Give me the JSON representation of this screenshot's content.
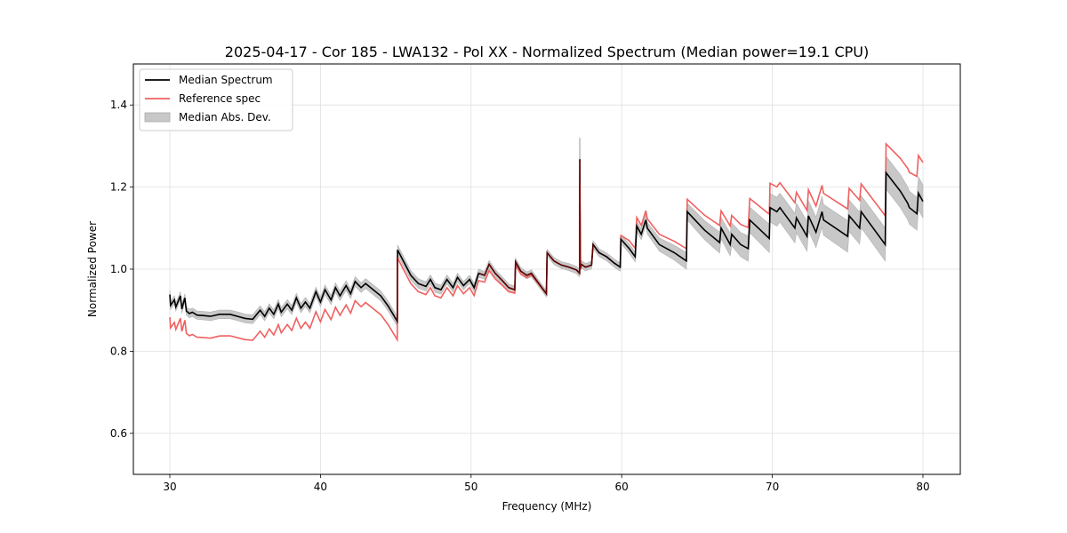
{
  "chart_data": {
    "type": "line",
    "title": "2025-04-17 - Cor 185 - LWA132 - Pol XX - Normalized Spectrum (Median power=19.1 CPU)",
    "xlabel": "Frequency (MHz)",
    "ylabel": "Normalized Power",
    "xlim": [
      27.58,
      82.48
    ],
    "ylim": [
      0.5,
      1.5
    ],
    "xticks": [
      30,
      40,
      50,
      60,
      70,
      80
    ],
    "xtick_labels": [
      "30",
      "40",
      "50",
      "60",
      "70",
      "80"
    ],
    "yticks": [
      0.6,
      0.8,
      1.0,
      1.2,
      1.4
    ],
    "ytick_labels": [
      "0.6",
      "0.8",
      "1.0",
      "1.2",
      "1.4"
    ],
    "grid": true,
    "legend": {
      "placement": "top-left",
      "entries": [
        {
          "label": "Median Spectrum",
          "kind": "line",
          "color": "#000000"
        },
        {
          "label": "Reference spec",
          "kind": "line",
          "color": "#f06060"
        },
        {
          "label": "Median Abs. Dev.",
          "kind": "patch",
          "color": "#c8c8c8"
        }
      ]
    },
    "series": [
      {
        "name": "Median Spectrum",
        "color": "#000000",
        "x": [
          30.0,
          30.05,
          30.3,
          30.4,
          30.7,
          30.8,
          31.0,
          31.1,
          31.3,
          31.5,
          31.8,
          32.2,
          32.7,
          33.3,
          34.0,
          34.5,
          35.0,
          35.5,
          36.0,
          36.3,
          36.6,
          36.9,
          37.2,
          37.4,
          37.8,
          38.1,
          38.4,
          38.7,
          39.0,
          39.3,
          39.7,
          40.0,
          40.3,
          40.7,
          41.0,
          41.3,
          41.7,
          42.0,
          42.3,
          42.7,
          43.0,
          43.5,
          44.0,
          44.5,
          45.1,
          45.12,
          45.5,
          46.0,
          46.5,
          47.0,
          47.3,
          47.6,
          48.0,
          48.4,
          48.8,
          49.1,
          49.5,
          49.9,
          50.2,
          50.5,
          50.9,
          51.2,
          51.6,
          52.0,
          52.5,
          52.9,
          52.95,
          53.3,
          53.7,
          54.0,
          54.5,
          55.0,
          55.05,
          55.5,
          56.0,
          56.5,
          57.0,
          57.2,
          57.22,
          57.25,
          57.3,
          57.6,
          58.0,
          58.1,
          58.5,
          59.0,
          59.5,
          59.9,
          59.95,
          60.5,
          60.9,
          61.0,
          61.3,
          61.6,
          61.7,
          62.5,
          63.5,
          64.3,
          64.35,
          65.5,
          66.5,
          66.6,
          67.2,
          67.3,
          67.9,
          68.4,
          68.5,
          69.8,
          69.85,
          70.3,
          70.5,
          71.5,
          71.6,
          72.3,
          72.4,
          72.9,
          73.3,
          73.4,
          75.0,
          75.1,
          75.8,
          75.9,
          77.5,
          77.55,
          78.5,
          79.0,
          79.1,
          79.6,
          79.7,
          80.0
        ],
        "y": [
          0.938,
          0.912,
          0.925,
          0.908,
          0.935,
          0.903,
          0.93,
          0.898,
          0.892,
          0.895,
          0.888,
          0.887,
          0.885,
          0.89,
          0.89,
          0.885,
          0.88,
          0.878,
          0.9,
          0.885,
          0.905,
          0.89,
          0.915,
          0.895,
          0.915,
          0.9,
          0.93,
          0.905,
          0.92,
          0.905,
          0.945,
          0.92,
          0.95,
          0.925,
          0.955,
          0.935,
          0.96,
          0.94,
          0.97,
          0.955,
          0.965,
          0.95,
          0.935,
          0.91,
          0.873,
          1.047,
          1.02,
          0.985,
          0.965,
          0.958,
          0.975,
          0.955,
          0.95,
          0.975,
          0.955,
          0.98,
          0.96,
          0.975,
          0.955,
          0.99,
          0.985,
          1.012,
          0.99,
          0.975,
          0.955,
          0.95,
          1.018,
          0.995,
          0.985,
          0.99,
          0.965,
          0.94,
          1.04,
          1.02,
          1.01,
          1.005,
          0.998,
          0.99,
          1.268,
          1.0,
          1.012,
          1.005,
          1.01,
          1.06,
          1.04,
          1.03,
          1.015,
          1.005,
          1.073,
          1.05,
          1.03,
          1.105,
          1.085,
          1.12,
          1.1,
          1.06,
          1.04,
          1.02,
          1.14,
          1.095,
          1.065,
          1.1,
          1.06,
          1.085,
          1.06,
          1.05,
          1.12,
          1.075,
          1.15,
          1.14,
          1.15,
          1.1,
          1.125,
          1.08,
          1.13,
          1.09,
          1.14,
          1.12,
          1.08,
          1.13,
          1.1,
          1.14,
          1.06,
          1.235,
          1.19,
          1.16,
          1.15,
          1.135,
          1.185,
          1.165
        ]
      },
      {
        "name": "Reference spec",
        "color": "#f06060",
        "offsets_vs_median_x": [
          30.0,
          45.1,
          45.12,
          50.0,
          55.0,
          59.9,
          60.0,
          64.3,
          70.0,
          77.5,
          80.0
        ],
        "offsets_vs_median": [
          -0.055,
          -0.045,
          -0.02,
          -0.02,
          0.0,
          0.0,
          0.018,
          0.03,
          0.06,
          0.07,
          0.095
        ]
      },
      {
        "name": "Median Abs. Dev.",
        "color": "#c8c8c8",
        "halfwidth_x": [
          30.0,
          45.0,
          50.0,
          55.0,
          59.9,
          64.3,
          70.0,
          77.5,
          80.0
        ],
        "halfwidth": [
          0.01,
          0.012,
          0.01,
          0.008,
          0.01,
          0.02,
          0.035,
          0.04,
          0.04
        ]
      }
    ]
  }
}
